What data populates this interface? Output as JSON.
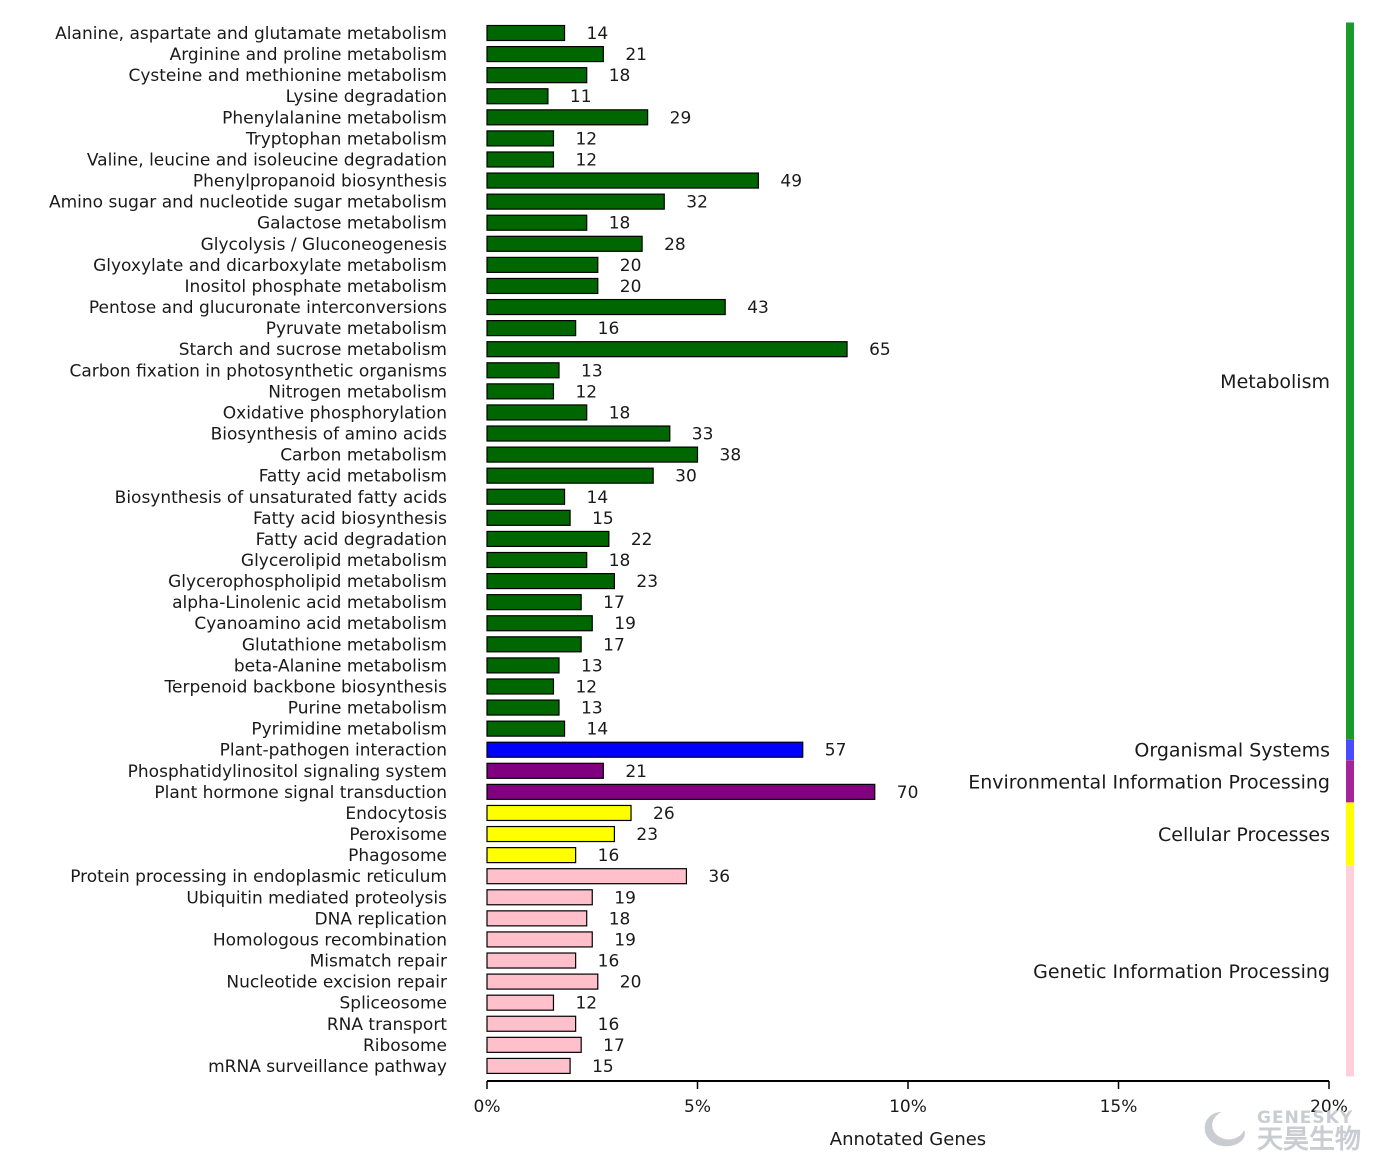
{
  "chart_data": {
    "type": "bar",
    "orientation": "horizontal",
    "xlabel": "Annotated Genes",
    "x_ticks": [
      "0%",
      "5%",
      "10%",
      "15%",
      "20%"
    ],
    "xlim_percent": [
      0,
      20
    ],
    "gene_count_per_percent": 7.6,
    "categories": [
      {
        "label": "Alanine, aspartate and glutamate metabolism",
        "value": 14,
        "group": "Metabolism"
      },
      {
        "label": "Arginine and proline metabolism",
        "value": 21,
        "group": "Metabolism"
      },
      {
        "label": "Cysteine and methionine metabolism",
        "value": 18,
        "group": "Metabolism"
      },
      {
        "label": "Lysine degradation",
        "value": 11,
        "group": "Metabolism"
      },
      {
        "label": "Phenylalanine metabolism",
        "value": 29,
        "group": "Metabolism"
      },
      {
        "label": "Tryptophan metabolism",
        "value": 12,
        "group": "Metabolism"
      },
      {
        "label": "Valine, leucine and isoleucine degradation",
        "value": 12,
        "group": "Metabolism"
      },
      {
        "label": "Phenylpropanoid biosynthesis",
        "value": 49,
        "group": "Metabolism"
      },
      {
        "label": "Amino sugar and nucleotide sugar metabolism",
        "value": 32,
        "group": "Metabolism"
      },
      {
        "label": "Galactose metabolism",
        "value": 18,
        "group": "Metabolism"
      },
      {
        "label": "Glycolysis / Gluconeogenesis",
        "value": 28,
        "group": "Metabolism"
      },
      {
        "label": "Glyoxylate and dicarboxylate metabolism",
        "value": 20,
        "group": "Metabolism"
      },
      {
        "label": "Inositol phosphate metabolism",
        "value": 20,
        "group": "Metabolism"
      },
      {
        "label": "Pentose and glucuronate interconversions",
        "value": 43,
        "group": "Metabolism"
      },
      {
        "label": "Pyruvate metabolism",
        "value": 16,
        "group": "Metabolism"
      },
      {
        "label": "Starch and sucrose metabolism",
        "value": 65,
        "group": "Metabolism"
      },
      {
        "label": "Carbon fixation in photosynthetic organisms",
        "value": 13,
        "group": "Metabolism"
      },
      {
        "label": "Nitrogen metabolism",
        "value": 12,
        "group": "Metabolism"
      },
      {
        "label": "Oxidative phosphorylation",
        "value": 18,
        "group": "Metabolism"
      },
      {
        "label": "Biosynthesis of amino acids",
        "value": 33,
        "group": "Metabolism"
      },
      {
        "label": "Carbon metabolism",
        "value": 38,
        "group": "Metabolism"
      },
      {
        "label": "Fatty acid metabolism",
        "value": 30,
        "group": "Metabolism"
      },
      {
        "label": "Biosynthesis of unsaturated fatty acids",
        "value": 14,
        "group": "Metabolism"
      },
      {
        "label": "Fatty acid biosynthesis",
        "value": 15,
        "group": "Metabolism"
      },
      {
        "label": "Fatty acid degradation",
        "value": 22,
        "group": "Metabolism"
      },
      {
        "label": "Glycerolipid metabolism",
        "value": 18,
        "group": "Metabolism"
      },
      {
        "label": "Glycerophospholipid metabolism",
        "value": 23,
        "group": "Metabolism"
      },
      {
        "label": "alpha-Linolenic acid metabolism",
        "value": 17,
        "group": "Metabolism"
      },
      {
        "label": "Cyanoamino acid metabolism",
        "value": 19,
        "group": "Metabolism"
      },
      {
        "label": "Glutathione metabolism",
        "value": 17,
        "group": "Metabolism"
      },
      {
        "label": "beta-Alanine metabolism",
        "value": 13,
        "group": "Metabolism"
      },
      {
        "label": "Terpenoid backbone biosynthesis",
        "value": 12,
        "group": "Metabolism"
      },
      {
        "label": "Purine metabolism",
        "value": 13,
        "group": "Metabolism"
      },
      {
        "label": "Pyrimidine metabolism",
        "value": 14,
        "group": "Metabolism"
      },
      {
        "label": "Plant-pathogen interaction",
        "value": 57,
        "group": "Organismal Systems"
      },
      {
        "label": "Phosphatidylinositol signaling system",
        "value": 21,
        "group": "Environmental Information Processing"
      },
      {
        "label": "Plant hormone signal transduction",
        "value": 70,
        "group": "Environmental Information Processing"
      },
      {
        "label": "Endocytosis",
        "value": 26,
        "group": "Cellular Processes"
      },
      {
        "label": "Peroxisome",
        "value": 23,
        "group": "Cellular Processes"
      },
      {
        "label": "Phagosome",
        "value": 16,
        "group": "Cellular Processes"
      },
      {
        "label": "Protein processing in endoplasmic reticulum",
        "value": 36,
        "group": "Genetic Information Processing"
      },
      {
        "label": "Ubiquitin mediated proteolysis",
        "value": 19,
        "group": "Genetic Information Processing"
      },
      {
        "label": "DNA replication",
        "value": 18,
        "group": "Genetic Information Processing"
      },
      {
        "label": "Homologous recombination",
        "value": 19,
        "group": "Genetic Information Processing"
      },
      {
        "label": "Mismatch repair",
        "value": 16,
        "group": "Genetic Information Processing"
      },
      {
        "label": "Nucleotide excision repair",
        "value": 20,
        "group": "Genetic Information Processing"
      },
      {
        "label": "Spliceosome",
        "value": 12,
        "group": "Genetic Information Processing"
      },
      {
        "label": "RNA transport",
        "value": 16,
        "group": "Genetic Information Processing"
      },
      {
        "label": "Ribosome",
        "value": 17,
        "group": "Genetic Information Processing"
      },
      {
        "label": "mRNA surveillance pathway",
        "value": 15,
        "group": "Genetic Information Processing"
      }
    ],
    "groups": [
      {
        "name": "Metabolism",
        "fill": "#006600",
        "bar_color": "#1a9b2c"
      },
      {
        "name": "Organismal Systems",
        "fill": "#0000ff",
        "bar_color": "#4a4aff"
      },
      {
        "name": "Environmental Information Processing",
        "fill": "#800080",
        "bar_color": "#a3249b"
      },
      {
        "name": "Cellular Processes",
        "fill": "#ffff00",
        "bar_color": "#ffff00"
      },
      {
        "name": "Genetic Information Processing",
        "fill": "#ffc0cb",
        "bar_color": "#ffd0dc"
      }
    ]
  },
  "watermark": {
    "en": "GENESKY",
    "cn": "天昊生物"
  }
}
